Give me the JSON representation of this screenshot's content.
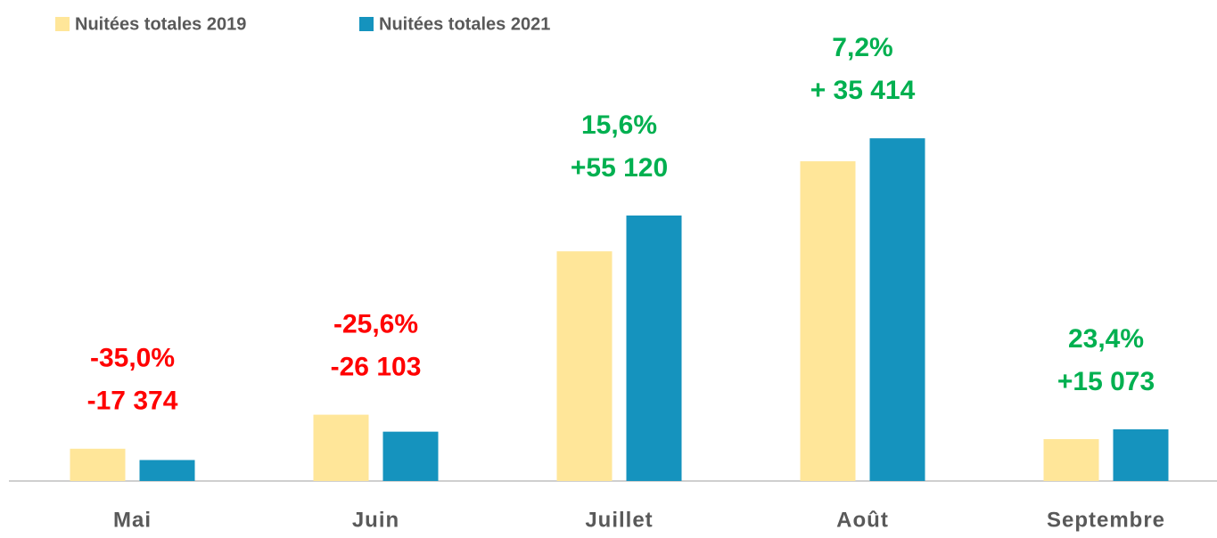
{
  "chart_data": {
    "type": "bar",
    "categories": [
      "Mai",
      "Juin",
      "Juillet",
      "Août",
      "Septembre"
    ],
    "series": [
      {
        "name": "Nuitées totales 2019",
        "color": "#ffe699",
        "values": [
          49640,
          101965,
          353333,
          491861,
          64415
        ]
      },
      {
        "name": "Nuitées totales 2021",
        "color": "#1593be",
        "values": [
          32266,
          75862,
          408453,
          527275,
          79488
        ]
      }
    ],
    "ylim": [
      0,
      740000
    ],
    "legend": "top-left",
    "annotations": [
      {
        "pct": "-35,0%",
        "diff": "-17 374",
        "color": "#ff0000"
      },
      {
        "pct": "-25,6%",
        "diff": "-26 103",
        "color": "#ff0000"
      },
      {
        "pct": "15,6%",
        "diff": "+55 120",
        "color": "#00b050"
      },
      {
        "pct": "7,2%",
        "diff": "+ 35 414",
        "color": "#00b050"
      },
      {
        "pct": "23,4%",
        "diff": "+15 073",
        "color": "#00b050"
      }
    ]
  }
}
